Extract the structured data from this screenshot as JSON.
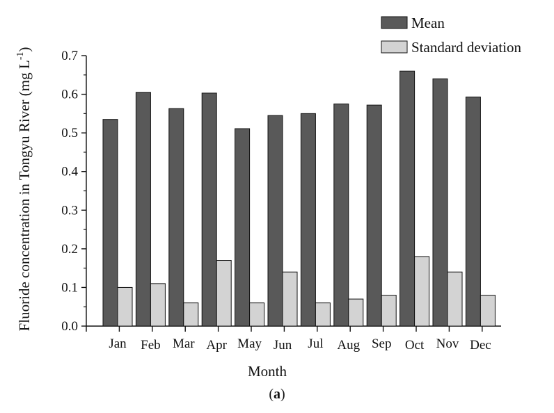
{
  "chart_data": {
    "type": "bar",
    "title": "",
    "xlabel": "Month",
    "ylabel_main": "Fluoride concentration in Tongyu River (mg L",
    "ylabel_sup": "-1",
    "ylabel_close": ")",
    "ylim": [
      0,
      0.7
    ],
    "yticks": [
      "0.0",
      "0.1",
      "0.2",
      "0.3",
      "0.4",
      "0.5",
      "0.6",
      "0.7"
    ],
    "categories": [
      "Jan",
      "Feb",
      "Mar",
      "Apr",
      "May",
      "Jun",
      "Jul",
      "Aug",
      "Sep",
      "Oct",
      "Nov",
      "Dec"
    ],
    "series": [
      {
        "name": "Mean",
        "color": "#595959",
        "values": [
          0.535,
          0.605,
          0.563,
          0.603,
          0.511,
          0.545,
          0.55,
          0.575,
          0.572,
          0.66,
          0.64,
          0.593
        ]
      },
      {
        "name": "Standard deviation",
        "color": "#d3d3d3",
        "values": [
          0.1,
          0.11,
          0.06,
          0.17,
          0.06,
          0.14,
          0.06,
          0.07,
          0.08,
          0.18,
          0.14,
          0.08
        ]
      }
    ],
    "legend_position": "top-right",
    "grid": false
  },
  "caption": {
    "open": "(",
    "letter": "a",
    "close": ")"
  }
}
